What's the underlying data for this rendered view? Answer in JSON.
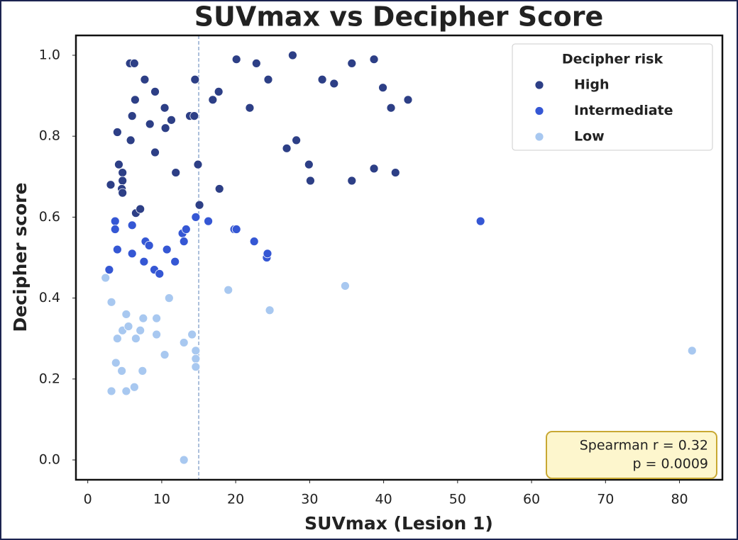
{
  "chart_data": {
    "type": "scatter",
    "title": "SUVmax vs Decipher Score",
    "x_label": "SUVmax (Lesion 1)",
    "y_label": "Decipher score",
    "legend_title": "Decipher risk",
    "legend_position": "upper right",
    "xlim": [
      -1.6,
      85.8
    ],
    "ylim": [
      -0.049,
      1.049
    ],
    "xticks": [
      0,
      10,
      20,
      30,
      40,
      50,
      60,
      70,
      80
    ],
    "yticks": [
      {
        "value": 0,
        "label": "0.0"
      },
      {
        "value": 0.2,
        "label": "0.2"
      },
      {
        "value": 0.4,
        "label": "0.4"
      },
      {
        "value": 0.6,
        "label": "0.6"
      },
      {
        "value": 0.8,
        "label": "0.8"
      },
      {
        "value": 1,
        "label": "1.0"
      }
    ],
    "vline": 15,
    "annotations": [
      "Spearman r = 0.32",
      "p = 0.0009"
    ],
    "series": [
      {
        "name": "High",
        "color": "#2d3f86",
        "x": [
          5.7,
          6.3,
          4.0,
          6.4,
          7.7,
          6.0,
          5.8,
          9.1,
          10.4,
          10.5,
          8.4,
          9.1,
          11.3,
          4.2,
          4.7,
          4.7,
          3.1,
          4.6,
          4.7,
          11.9,
          13.8,
          14.4,
          14.5,
          14.9,
          15.1,
          6.5,
          7.1,
          16.9,
          17.7,
          17.8,
          20.1,
          21.9,
          22.8,
          24.4,
          26.9,
          28.2,
          27.7,
          29.9,
          30.1,
          31.7,
          33.3,
          35.7,
          35.7,
          38.7,
          38.7,
          39.9,
          41.0,
          41.6,
          43.3
        ],
        "values": [
          0.98,
          0.98,
          0.81,
          0.89,
          0.94,
          0.85,
          0.79,
          0.91,
          0.87,
          0.82,
          0.83,
          0.76,
          0.84,
          0.73,
          0.71,
          0.69,
          0.68,
          0.67,
          0.66,
          0.71,
          0.85,
          0.85,
          0.94,
          0.73,
          0.63,
          0.61,
          0.62,
          0.89,
          0.91,
          0.67,
          0.99,
          0.87,
          0.98,
          0.94,
          0.77,
          0.79,
          1.0,
          0.73,
          0.69,
          0.94,
          0.93,
          0.98,
          0.69,
          0.99,
          0.72,
          0.92,
          0.87,
          0.71,
          0.89
        ]
      },
      {
        "name": "Intermediate",
        "color": "#3557d4",
        "x": [
          3.7,
          3.7,
          2.9,
          4.0,
          6.0,
          6.0,
          7.6,
          7.8,
          8.3,
          9.0,
          9.7,
          10.7,
          11.8,
          12.8,
          13.0,
          13.3,
          14.6,
          16.3,
          19.8,
          20.1,
          22.5,
          24.2,
          24.3,
          53.1
        ],
        "values": [
          0.59,
          0.57,
          0.47,
          0.52,
          0.58,
          0.51,
          0.49,
          0.54,
          0.53,
          0.47,
          0.46,
          0.52,
          0.49,
          0.56,
          0.54,
          0.57,
          0.6,
          0.59,
          0.57,
          0.57,
          0.54,
          0.5,
          0.51,
          0.59
        ]
      },
      {
        "name": "Low",
        "color": "#a8c8f0",
        "x": [
          2.4,
          3.2,
          3.2,
          4.0,
          3.8,
          4.6,
          4.7,
          5.2,
          5.5,
          5.2,
          6.3,
          6.5,
          7.1,
          7.5,
          7.4,
          9.3,
          9.3,
          10.4,
          11.0,
          13.0,
          13.0,
          14.1,
          14.6,
          14.6,
          14.6,
          19.0,
          24.6,
          34.8,
          81.7
        ],
        "values": [
          0.45,
          0.39,
          0.17,
          0.3,
          0.24,
          0.22,
          0.32,
          0.36,
          0.33,
          0.17,
          0.18,
          0.3,
          0.32,
          0.35,
          0.22,
          0.35,
          0.31,
          0.26,
          0.4,
          0.29,
          0.0,
          0.31,
          0.27,
          0.25,
          0.23,
          0.42,
          0.37,
          0.43,
          0.27
        ]
      }
    ]
  }
}
